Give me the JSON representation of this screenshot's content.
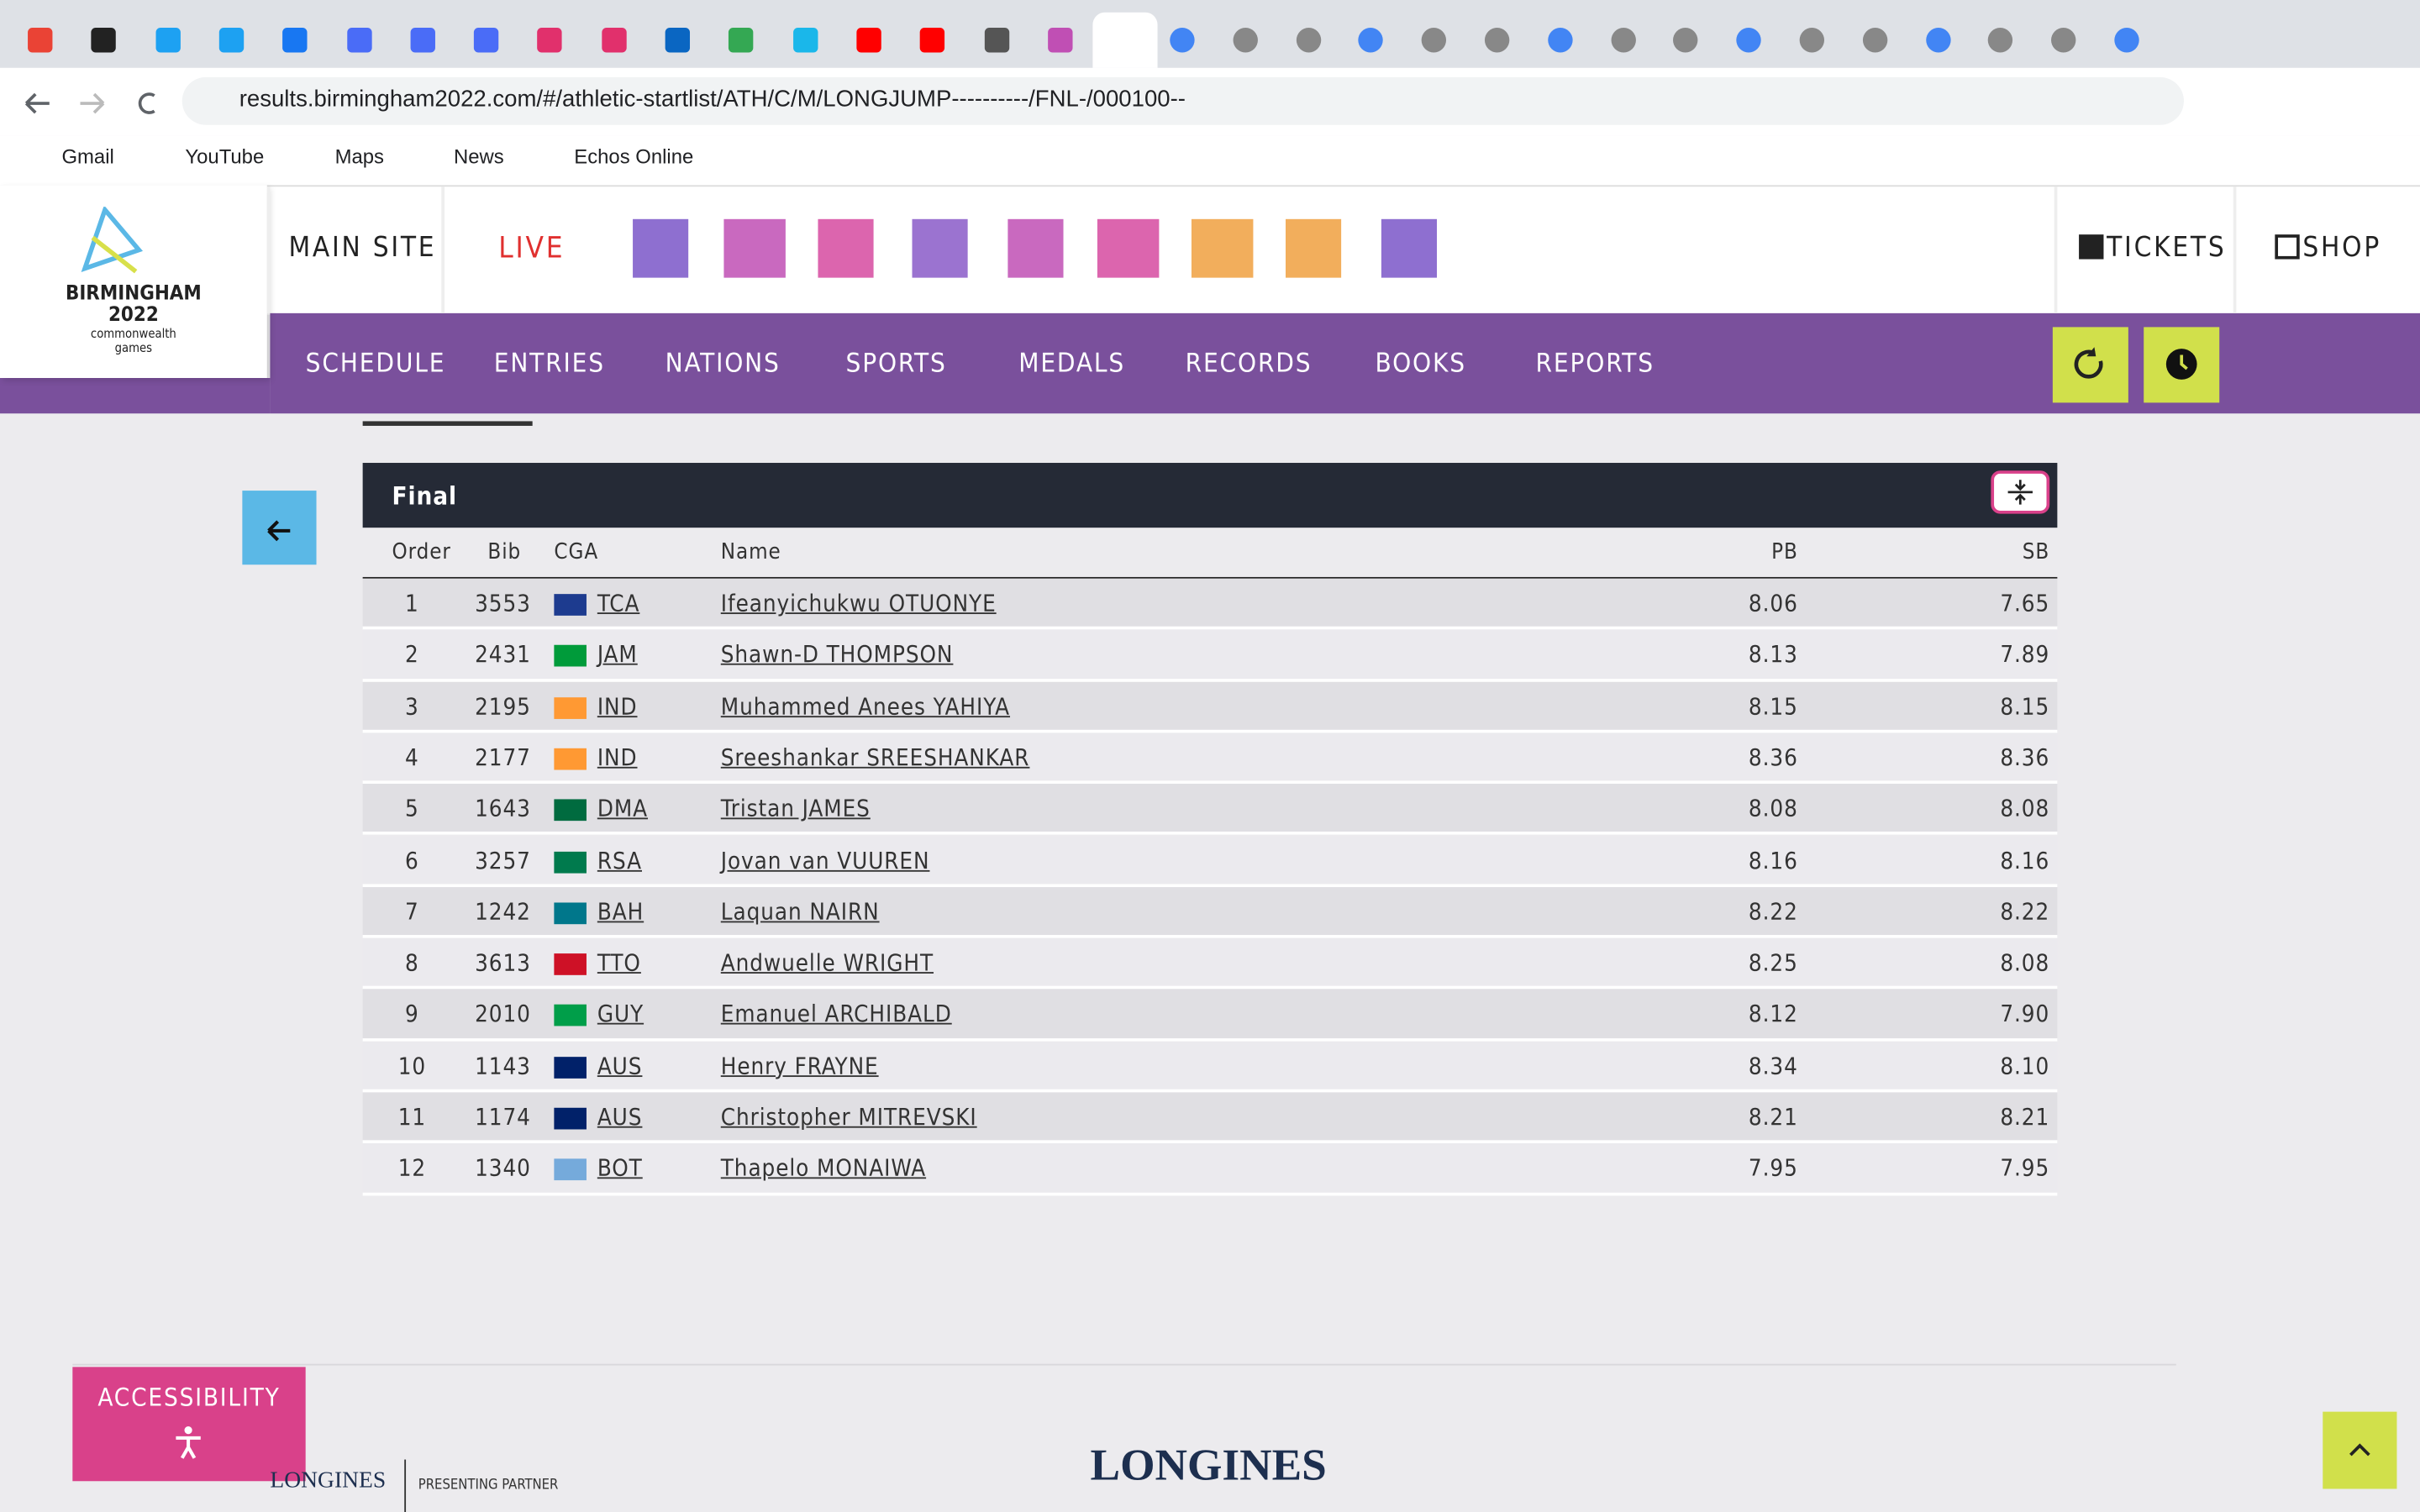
{
  "browser": {
    "url": "results.birmingham2022.com/#/athletic-startlist/ATH/C/M/LONGJUMP----------/FNL-/000100--",
    "bookmarks": [
      "Gmail",
      "YouTube",
      "Maps",
      "News",
      "Echos Online"
    ]
  },
  "header": {
    "logo": [
      "BIRMINGHAM",
      "2022",
      "commonwealth",
      "games"
    ],
    "main_site": "MAIN SITE",
    "live": "LIVE",
    "tickets": "TICKETS",
    "shop": "SHOP",
    "menu": [
      "SCHEDULE",
      "ENTRIES",
      "NATIONS",
      "SPORTS",
      "MEDALS",
      "RECORDS",
      "BOOKS",
      "REPORTS"
    ]
  },
  "table": {
    "title": "Final",
    "columns": [
      "Order",
      "Bib",
      "CGA",
      "Name",
      "PB",
      "SB"
    ],
    "rows": [
      [
        "1",
        "3553",
        "TCA",
        "Ifeanyichukwu OTUONYE",
        "8.06",
        "7.65"
      ],
      [
        "2",
        "2431",
        "JAM",
        "Shawn-D THOMPSON",
        "8.13",
        "7.89"
      ],
      [
        "3",
        "2195",
        "IND",
        "Muhammed Anees YAHIYA",
        "8.15",
        "8.15"
      ],
      [
        "4",
        "2177",
        "IND",
        "Sreeshankar SREESHANKAR",
        "8.36",
        "8.36"
      ],
      [
        "5",
        "1643",
        "DMA",
        "Tristan JAMES",
        "8.08",
        "8.08"
      ],
      [
        "6",
        "3257",
        "RSA",
        "Jovan van VUUREN",
        "8.16",
        "8.16"
      ],
      [
        "7",
        "1242",
        "BAH",
        "Laquan NAIRN",
        "8.22",
        "8.22"
      ],
      [
        "8",
        "3613",
        "TTO",
        "Andwuelle WRIGHT",
        "8.25",
        "8.08"
      ],
      [
        "9",
        "2010",
        "GUY",
        "Emanuel ARCHIBALD",
        "8.12",
        "7.90"
      ],
      [
        "10",
        "1143",
        "AUS",
        "Henry FRAYNE",
        "8.34",
        "8.10"
      ],
      [
        "11",
        "1174",
        "AUS",
        "Christopher MITREVSKI",
        "8.21",
        "8.21"
      ],
      [
        "12",
        "1340",
        "BOT",
        "Thapelo MONAIWA",
        "7.95",
        "7.95"
      ]
    ]
  },
  "footer": {
    "accessibility": "ACCESSIBILITY",
    "sponsor": "LONGINES",
    "partner": "PRESENTING PARTNER"
  }
}
